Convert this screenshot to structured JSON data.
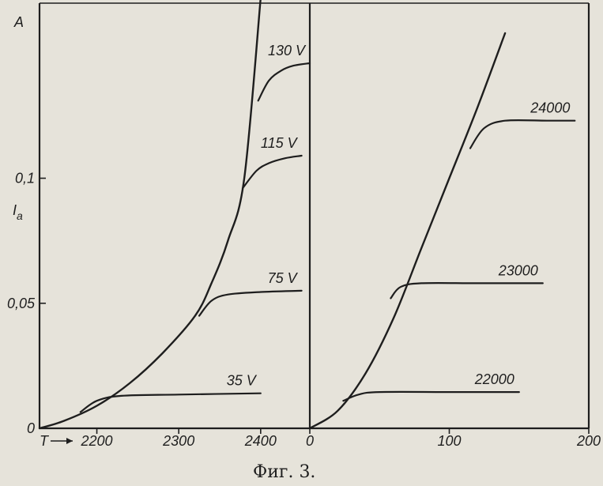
{
  "caption": "Фиг. 3.",
  "chart_data": [
    {
      "type": "line",
      "ylabel_top": "A",
      "ylabel": "I",
      "ylabel_sub": "a",
      "xlabel": "T",
      "xlim": [
        2130,
        2460
      ],
      "ylim": [
        0,
        0.17
      ],
      "x_ticks": [
        {
          "v": 2200,
          "label": "2200"
        },
        {
          "v": 2300,
          "label": "2300"
        },
        {
          "v": 2400,
          "label": "2400"
        }
      ],
      "y_ticks": [
        {
          "v": 0,
          "label": "0"
        },
        {
          "v": 0.05,
          "label": "0,05"
        },
        {
          "v": 0.1,
          "label": "0,1"
        }
      ],
      "envelope": {
        "x": [
          2130,
          2160,
          2200,
          2240,
          2280,
          2320,
          2340,
          2360,
          2380,
          2400
        ],
        "y": [
          0,
          0.003,
          0.009,
          0.018,
          0.03,
          0.045,
          0.058,
          0.075,
          0.1,
          0.172
        ]
      },
      "series": [
        {
          "name": "35 V",
          "x": [
            2180,
            2200,
            2230,
            2300,
            2400
          ],
          "y": [
            0.0065,
            0.011,
            0.013,
            0.0135,
            0.014
          ]
        },
        {
          "name": "75 V",
          "x": [
            2325,
            2340,
            2360,
            2400,
            2450
          ],
          "y": [
            0.045,
            0.051,
            0.0535,
            0.0545,
            0.055
          ]
        },
        {
          "name": "115 V",
          "x": [
            2378,
            2395,
            2410,
            2430,
            2450
          ],
          "y": [
            0.096,
            0.103,
            0.106,
            0.108,
            0.109
          ]
        },
        {
          "name": "130 V",
          "x": [
            2397,
            2410,
            2425,
            2440,
            2460
          ],
          "y": [
            0.131,
            0.139,
            0.143,
            0.145,
            0.146
          ]
        }
      ]
    },
    {
      "type": "line",
      "xlim": [
        0,
        200
      ],
      "ylim": [
        0,
        0.17
      ],
      "x_ticks": [
        {
          "v": 0,
          "label": "0"
        },
        {
          "v": 100,
          "label": "100"
        },
        {
          "v": 200,
          "label": "200"
        }
      ],
      "envelope": {
        "x": [
          0,
          20,
          40,
          60,
          80,
          100,
          120,
          140
        ],
        "y": [
          0,
          0.007,
          0.022,
          0.044,
          0.072,
          0.1,
          0.128,
          0.158
        ]
      },
      "series": [
        {
          "name": "22000",
          "x": [
            24,
            35,
            50,
            100,
            150
          ],
          "y": [
            0.011,
            0.0135,
            0.0145,
            0.0145,
            0.0145
          ]
        },
        {
          "name": "23000",
          "x": [
            58,
            65,
            80,
            120,
            167
          ],
          "y": [
            0.052,
            0.0565,
            0.058,
            0.058,
            0.058
          ]
        },
        {
          "name": "24000",
          "x": [
            115,
            125,
            140,
            170,
            190
          ],
          "y": [
            0.112,
            0.12,
            0.123,
            0.123,
            0.123
          ]
        }
      ]
    }
  ]
}
